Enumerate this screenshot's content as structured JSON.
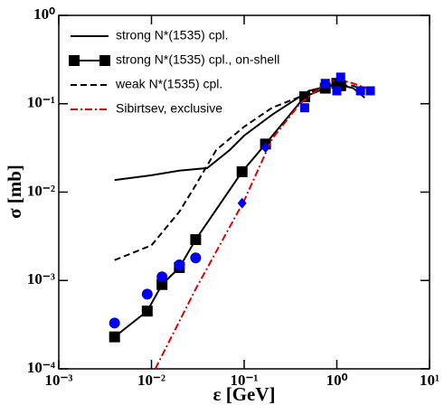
{
  "chart_data": {
    "type": "line",
    "xlabel": "ε [GeV]",
    "ylabel": "σ [mb]",
    "log_x": true,
    "log_y": true,
    "xlim": [
      0.001,
      10
    ],
    "ylim": [
      0.0001,
      1
    ],
    "xticks": [
      {
        "value": 0.001,
        "label": "10⁻³"
      },
      {
        "value": 0.01,
        "label": "10⁻²"
      },
      {
        "value": 0.1,
        "label": "10⁻¹"
      },
      {
        "value": 1,
        "label": "10⁰"
      },
      {
        "value": 10,
        "label": "10¹"
      }
    ],
    "yticks": [
      {
        "value": 0.0001,
        "label": "10⁻⁴"
      },
      {
        "value": 0.001,
        "label": "10⁻³"
      },
      {
        "value": 0.01,
        "label": "10⁻²"
      },
      {
        "value": 0.1,
        "label": "10⁻¹"
      },
      {
        "value": 1,
        "label": "10⁰"
      }
    ],
    "legend": "upper left",
    "series": [
      {
        "name": "strong N*(1535) cpl.",
        "color": "#000000",
        "style": "solid",
        "marker": "none",
        "x": [
          0.004,
          0.01,
          0.02,
          0.04,
          0.07,
          0.1,
          0.2,
          0.5,
          1,
          1.5,
          2
        ],
        "values": [
          0.0137,
          0.0155,
          0.0175,
          0.0187,
          0.03,
          0.0436,
          0.075,
          0.14,
          0.167,
          0.15,
          0.117
        ]
      },
      {
        "name": "strong N*(1535) cpl., on-shell",
        "color": "#000000",
        "style": "solid",
        "marker": "square",
        "x": [
          0.004,
          0.009,
          0.013,
          0.02,
          0.03,
          0.095,
          0.17,
          0.45,
          0.75,
          1.0,
          1.1
        ],
        "values": [
          0.00023,
          0.00045,
          0.0009,
          0.0014,
          0.0029,
          0.017,
          0.035,
          0.12,
          0.15,
          0.17,
          0.16
        ]
      },
      {
        "name": "weak N*(1535) cpl.",
        "color": "#000000",
        "style": "dashed",
        "marker": "none",
        "x": [
          0.004,
          0.01,
          0.02,
          0.03,
          0.05,
          0.1,
          0.2,
          0.4,
          0.7,
          1,
          1.5,
          2
        ],
        "values": [
          0.0017,
          0.0025,
          0.006,
          0.012,
          0.03,
          0.055,
          0.09,
          0.12,
          0.15,
          0.16,
          0.16,
          0.14
        ]
      },
      {
        "name": "Sibirtsev, exclusive",
        "color": "#e00000",
        "style": "dashdot",
        "marker": "none",
        "x": [
          0.011,
          0.03,
          0.1,
          0.2,
          0.4,
          0.7,
          1,
          1.5,
          2.5
        ],
        "values": [
          0.0001,
          0.0008,
          0.008,
          0.04,
          0.1,
          0.16,
          0.19,
          0.17,
          0.14
        ]
      },
      {
        "color": "#0000ee",
        "style": "none",
        "marker": "circle",
        "x": [
          0.004,
          0.009,
          0.013,
          0.02,
          0.03
        ],
        "values": [
          0.00033,
          0.0007,
          0.0011,
          0.0015,
          0.0018
        ]
      },
      {
        "color": "#0000ee",
        "style": "none",
        "marker": "diamond",
        "x": [
          0.095,
          0.17
        ],
        "values": [
          0.0075,
          0.032
        ]
      },
      {
        "color": "#0000ee",
        "style": "none",
        "marker": "square",
        "x": [
          0.45,
          0.75,
          1.0,
          1.1,
          1.8,
          2.3
        ],
        "values": [
          0.09,
          0.17,
          0.14,
          0.2,
          0.14,
          0.14
        ]
      }
    ]
  }
}
